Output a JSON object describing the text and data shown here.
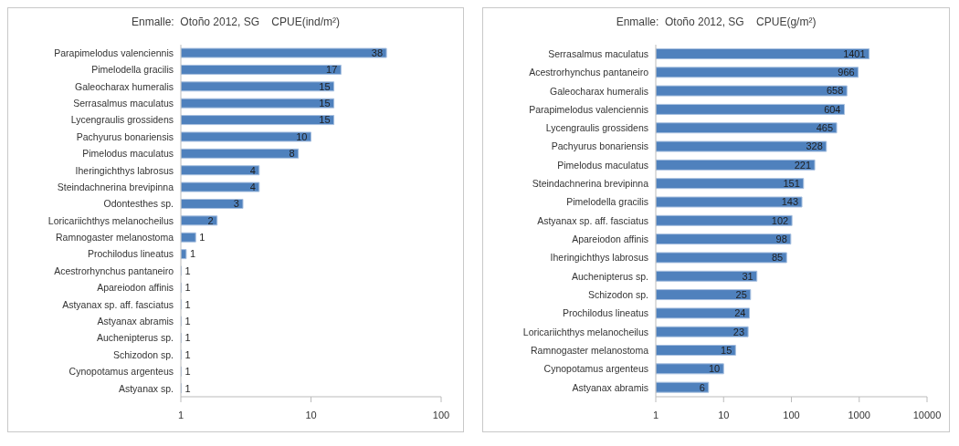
{
  "chart_data": [
    {
      "type": "bar",
      "orientation": "horizontal",
      "title": "Enmalle:  Otoño 2012, SG    CPUE(ind/m²)",
      "categories": [
        "Parapimelodus valenciennis",
        "Pimelodella gracilis",
        "Galeocharax humeralis",
        "Serrasalmus maculatus",
        "Lycengraulis grossidens",
        "Pachyurus bonariensis",
        "Pimelodus maculatus",
        "Iheringichthys labrosus",
        "Steindachnerina brevipinna",
        "Odontesthes sp.",
        "Loricariichthys melanocheilus",
        "Ramnogaster melanostoma",
        "Prochilodus lineatus",
        "Acestrorhynchus pantaneiro",
        "Apareiodon affinis",
        "Astyanax sp. aff.  fasciatus",
        "Astyanax abramis",
        "Auchenipterus sp.",
        "Schizodon sp.",
        "Cynopotamus argenteus",
        "Astyanax sp."
      ],
      "values": [
        38,
        17,
        15,
        15,
        15,
        10,
        8,
        4,
        4,
        3,
        1.9,
        1.3,
        1.1,
        1,
        1,
        1,
        1,
        1,
        1,
        1,
        1
      ],
      "value_labels": [
        "38",
        "17",
        "15",
        "15",
        "15",
        "10",
        "8",
        "4",
        "4",
        "3",
        "2",
        "1",
        "1",
        "1",
        "1",
        "1",
        "1",
        "1",
        "1",
        "1",
        "1"
      ],
      "color": "#4f81bd",
      "log": "x",
      "xlim": [
        1,
        100
      ],
      "xticks": [
        1,
        10,
        100
      ],
      "grid": false,
      "legend": false
    },
    {
      "type": "bar",
      "orientation": "horizontal",
      "title": "Enmalle:  Otoño 2012, SG    CPUE(g/m²)",
      "categories": [
        "Serrasalmus maculatus",
        "Acestrorhynchus pantaneiro",
        "Galeocharax humeralis",
        "Parapimelodus valenciennis",
        "Lycengraulis grossidens",
        "Pachyurus bonariensis",
        "Pimelodus maculatus",
        "Steindachnerina brevipinna",
        "Pimelodella gracilis",
        "Astyanax sp. aff.  fasciatus",
        "Apareiodon affinis",
        "Iheringichthys labrosus",
        "Auchenipterus sp.",
        "Schizodon sp.",
        "Prochilodus lineatus",
        "Loricariichthys melanocheilus",
        "Ramnogaster melanostoma",
        "Cynopotamus argenteus",
        "Astyanax abramis"
      ],
      "values": [
        1401,
        966,
        658,
        604,
        465,
        328,
        221,
        151,
        143,
        102,
        98,
        85,
        31,
        25,
        24,
        23,
        15,
        10,
        6
      ],
      "data_labels": true,
      "color": "#4f81bd",
      "log": "x",
      "xlim": [
        1,
        10000
      ],
      "xticks": [
        1,
        10,
        100,
        1000,
        10000
      ],
      "grid": false,
      "legend": false
    }
  ]
}
